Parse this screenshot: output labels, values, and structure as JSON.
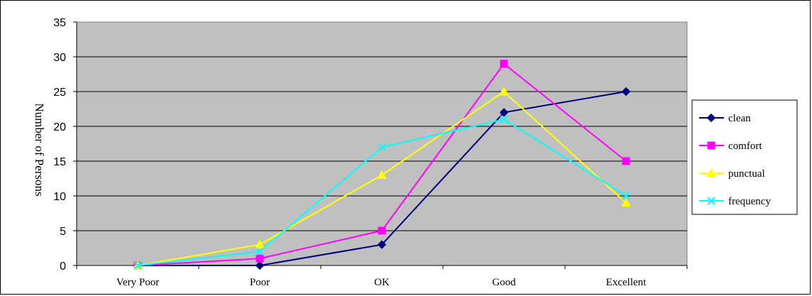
{
  "chart_data": {
    "type": "line",
    "title": "",
    "xlabel": "",
    "ylabel": "Number of Persons",
    "categories": [
      "Very Poor",
      "Poor",
      "OK",
      "Good",
      "Excellent"
    ],
    "ylim": [
      0,
      35
    ],
    "yticks": [
      0,
      5,
      10,
      15,
      20,
      25,
      30,
      35
    ],
    "grid": true,
    "legend_position": "right",
    "series": [
      {
        "name": "clean",
        "values": [
          0,
          0,
          3,
          22,
          25
        ],
        "color": "#000080",
        "marker": "diamond"
      },
      {
        "name": "comfort",
        "values": [
          0,
          1,
          5,
          29,
          15
        ],
        "color": "#FF00FF",
        "marker": "square"
      },
      {
        "name": "punctual",
        "values": [
          0,
          3,
          13,
          25,
          9
        ],
        "color": "#FFFF00",
        "marker": "triangle"
      },
      {
        "name": "frequency",
        "values": [
          0,
          2,
          17,
          21,
          10
        ],
        "color": "#00FFFF",
        "marker": "x"
      }
    ],
    "plot_background": "#C0C0C0"
  }
}
